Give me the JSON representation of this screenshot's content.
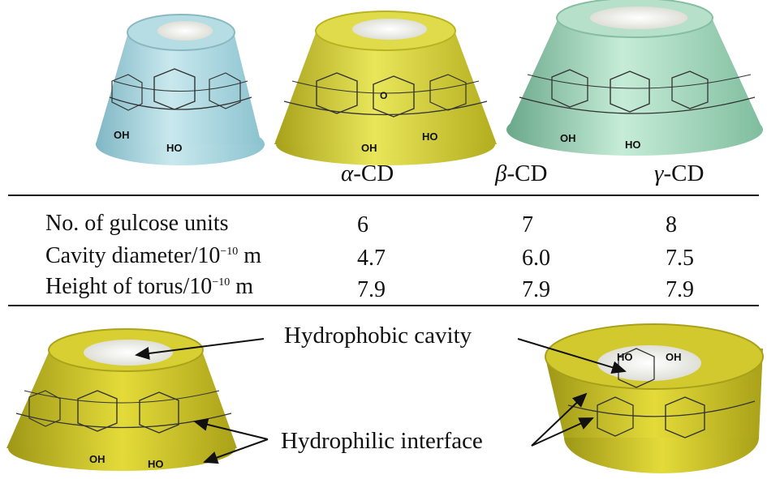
{
  "table": {
    "columns": [
      {
        "greek": "α",
        "suffix": "-CD"
      },
      {
        "greek": "β",
        "suffix": "-CD"
      },
      {
        "greek": "γ",
        "suffix": "-CD"
      }
    ],
    "rows": [
      {
        "label": "No. of gulcose units",
        "exp": null,
        "unit": null,
        "values": [
          "6",
          "7",
          "8"
        ]
      },
      {
        "label": "Cavity diameter/10",
        "exp": "−10",
        "unit": " m",
        "values": [
          "4.7",
          "6.0",
          "7.5"
        ]
      },
      {
        "label": "Height of torus/10",
        "exp": "−10",
        "unit": " m",
        "values": [
          "7.9",
          "7.9",
          "7.9"
        ]
      }
    ]
  },
  "callouts": {
    "cavity": "Hydrophobic cavity",
    "interface": "Hydrophilic interface"
  },
  "structure_labels": {
    "hydroxyl": "OH",
    "hydroxyl_reversed": "HO",
    "ring_oxygen": "O"
  },
  "colors": {
    "alpha_body": "#a9d3db",
    "beta_body": "#d6d22c",
    "gamma_body": "#9fd8b9",
    "model_yellow": "#cfc52a",
    "rule": "#111111"
  }
}
